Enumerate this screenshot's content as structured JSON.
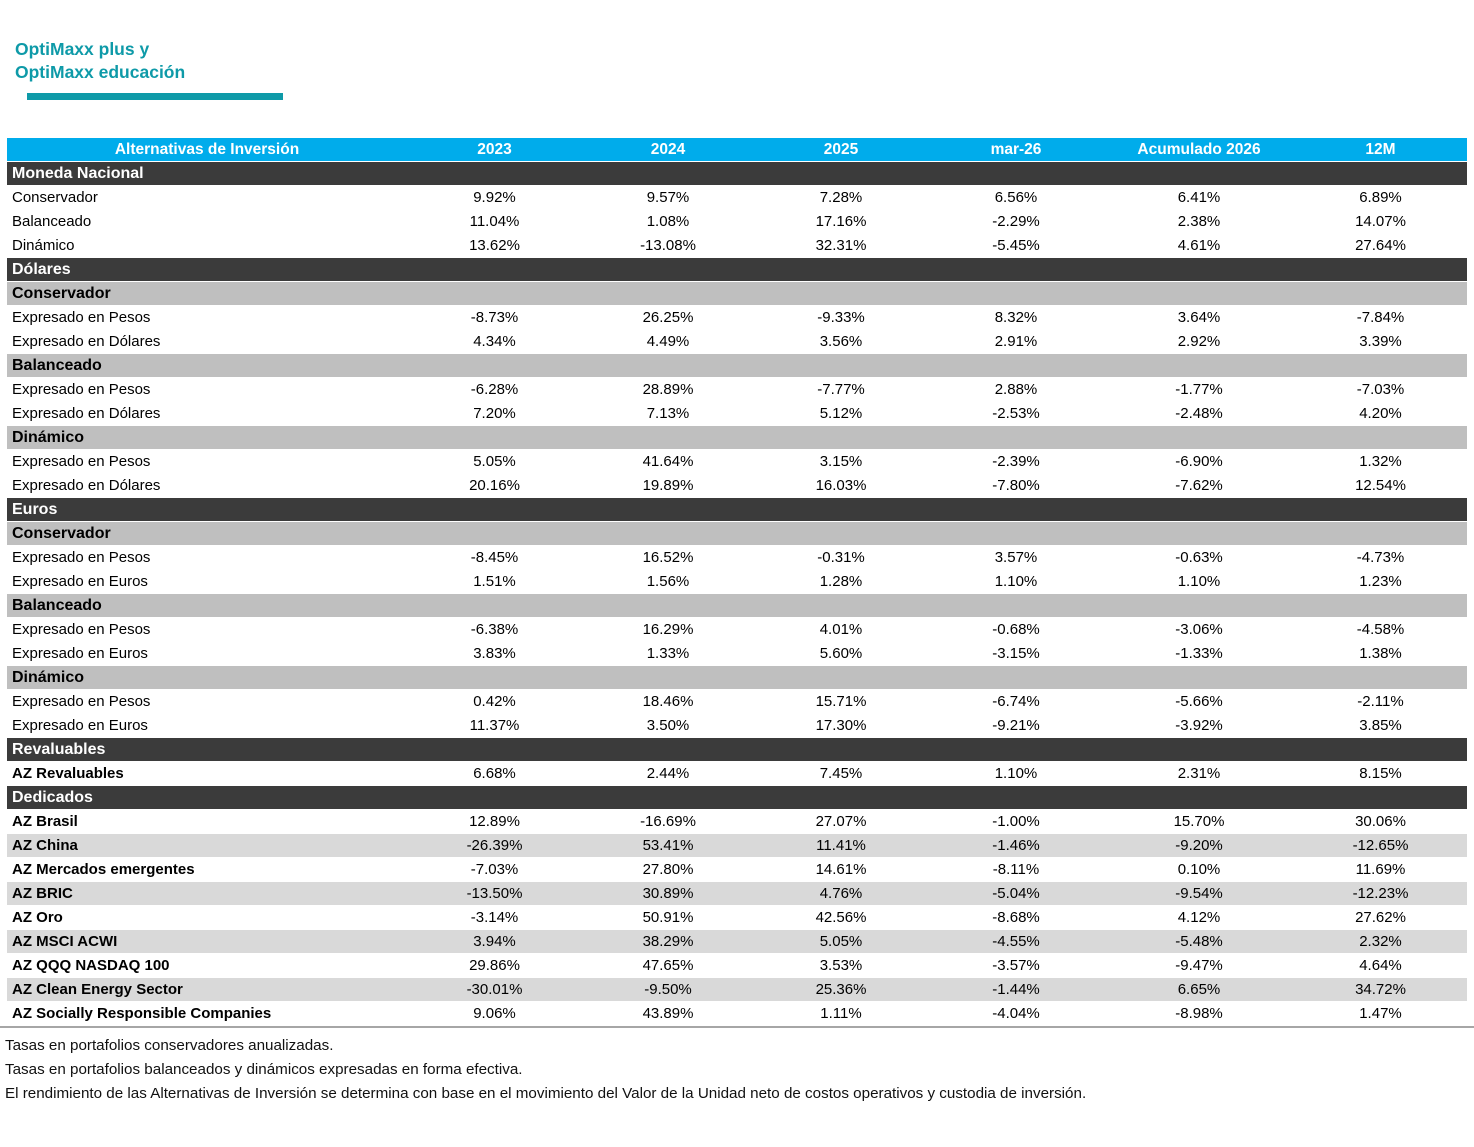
{
  "header": {
    "title_line1": "OptiMaxx plus y",
    "title_line2": "OptiMaxx educación"
  },
  "theme": {
    "teal": "#0e9aa8",
    "table_header_bg": "#00aceb",
    "section_bg": "#3b3b3b",
    "subsection_bg": "#bfbfbf",
    "stripe_bg": "#d9d9d9",
    "divider": "#a6a6a6"
  },
  "table": {
    "columns": [
      "Alternativas de Inversión",
      "2023",
      "2024",
      "2025",
      "mar-26",
      "Acumulado 2026",
      "12M"
    ],
    "rows": [
      {
        "type": "section",
        "label": "Moneda Nacional"
      },
      {
        "type": "data",
        "label": "Conservador",
        "values": [
          "9.92%",
          "9.57%",
          "7.28%",
          "6.56%",
          "6.41%",
          "6.89%"
        ]
      },
      {
        "type": "data",
        "label": "Balanceado",
        "values": [
          "11.04%",
          "1.08%",
          "17.16%",
          "-2.29%",
          "2.38%",
          "14.07%"
        ]
      },
      {
        "type": "data",
        "label": "Dinámico",
        "values": [
          "13.62%",
          "-13.08%",
          "32.31%",
          "-5.45%",
          "4.61%",
          "27.64%"
        ]
      },
      {
        "type": "section",
        "label": "Dólares"
      },
      {
        "type": "subsection",
        "label": "Conservador"
      },
      {
        "type": "data",
        "label": "Expresado en Pesos",
        "values": [
          "-8.73%",
          "26.25%",
          "-9.33%",
          "8.32%",
          "3.64%",
          "-7.84%"
        ]
      },
      {
        "type": "data",
        "label": "Expresado en Dólares",
        "values": [
          "4.34%",
          "4.49%",
          "3.56%",
          "2.91%",
          "2.92%",
          "3.39%"
        ]
      },
      {
        "type": "subsection",
        "label": "Balanceado"
      },
      {
        "type": "data",
        "label": "Expresado en Pesos",
        "values": [
          "-6.28%",
          "28.89%",
          "-7.77%",
          "2.88%",
          "-1.77%",
          "-7.03%"
        ]
      },
      {
        "type": "data",
        "label": "Expresado en Dólares",
        "values": [
          "7.20%",
          "7.13%",
          "5.12%",
          "-2.53%",
          "-2.48%",
          "4.20%"
        ]
      },
      {
        "type": "subsection",
        "label": "Dinámico"
      },
      {
        "type": "data",
        "label": "Expresado en Pesos",
        "values": [
          "5.05%",
          "41.64%",
          "3.15%",
          "-2.39%",
          "-6.90%",
          "1.32%"
        ]
      },
      {
        "type": "data",
        "label": "Expresado en Dólares",
        "values": [
          "20.16%",
          "19.89%",
          "16.03%",
          "-7.80%",
          "-7.62%",
          "12.54%"
        ]
      },
      {
        "type": "section",
        "label": "Euros"
      },
      {
        "type": "subsection",
        "label": "Conservador"
      },
      {
        "type": "data",
        "label": "Expresado en Pesos",
        "values": [
          "-8.45%",
          "16.52%",
          "-0.31%",
          "3.57%",
          "-0.63%",
          "-4.73%"
        ]
      },
      {
        "type": "data",
        "label": "Expresado en Euros",
        "values": [
          "1.51%",
          "1.56%",
          "1.28%",
          "1.10%",
          "1.10%",
          "1.23%"
        ]
      },
      {
        "type": "subsection",
        "label": "Balanceado"
      },
      {
        "type": "data",
        "label": "Expresado en Pesos",
        "values": [
          "-6.38%",
          "16.29%",
          "4.01%",
          "-0.68%",
          "-3.06%",
          "-4.58%"
        ]
      },
      {
        "type": "data",
        "label": "Expresado en Euros",
        "values": [
          "3.83%",
          "1.33%",
          "5.60%",
          "-3.15%",
          "-1.33%",
          "1.38%"
        ]
      },
      {
        "type": "subsection",
        "label": "Dinámico"
      },
      {
        "type": "data",
        "label": "Expresado en Pesos",
        "values": [
          "0.42%",
          "18.46%",
          "15.71%",
          "-6.74%",
          "-5.66%",
          "-2.11%"
        ]
      },
      {
        "type": "data",
        "label": "Expresado en Euros",
        "values": [
          "11.37%",
          "3.50%",
          "17.30%",
          "-9.21%",
          "-3.92%",
          "3.85%"
        ]
      },
      {
        "type": "section",
        "label": "Revaluables"
      },
      {
        "type": "data",
        "bold": true,
        "label": "AZ Revaluables",
        "values": [
          "6.68%",
          "2.44%",
          "7.45%",
          "1.10%",
          "2.31%",
          "8.15%"
        ]
      },
      {
        "type": "section",
        "label": "Dedicados"
      },
      {
        "type": "data",
        "bold": true,
        "label": "AZ Brasil",
        "values": [
          "12.89%",
          "-16.69%",
          "27.07%",
          "-1.00%",
          "15.70%",
          "30.06%"
        ]
      },
      {
        "type": "data",
        "bold": true,
        "striped": true,
        "label": "AZ China",
        "values": [
          "-26.39%",
          "53.41%",
          "11.41%",
          "-1.46%",
          "-9.20%",
          "-12.65%"
        ]
      },
      {
        "type": "data",
        "bold": true,
        "label": "AZ Mercados emergentes",
        "values": [
          "-7.03%",
          "27.80%",
          "14.61%",
          "-8.11%",
          "0.10%",
          "11.69%"
        ]
      },
      {
        "type": "data",
        "bold": true,
        "striped": true,
        "label": "AZ BRIC",
        "values": [
          "-13.50%",
          "30.89%",
          "4.76%",
          "-5.04%",
          "-9.54%",
          "-12.23%"
        ]
      },
      {
        "type": "data",
        "bold": true,
        "label": "AZ Oro",
        "values": [
          "-3.14%",
          "50.91%",
          "42.56%",
          "-8.68%",
          "4.12%",
          "27.62%"
        ]
      },
      {
        "type": "data",
        "bold": true,
        "striped": true,
        "label": "AZ MSCI ACWI",
        "values": [
          "3.94%",
          "38.29%",
          "5.05%",
          "-4.55%",
          "-5.48%",
          "2.32%"
        ]
      },
      {
        "type": "data",
        "bold": true,
        "label": "AZ QQQ NASDAQ 100",
        "values": [
          "29.86%",
          "47.65%",
          "3.53%",
          "-3.57%",
          "-9.47%",
          "4.64%"
        ]
      },
      {
        "type": "data",
        "bold": true,
        "striped": true,
        "label": "AZ Clean Energy Sector",
        "values": [
          "-30.01%",
          "-9.50%",
          "25.36%",
          "-1.44%",
          "6.65%",
          "34.72%"
        ]
      },
      {
        "type": "data",
        "bold": true,
        "label": "AZ Socially Responsible Companies",
        "values": [
          "9.06%",
          "43.89%",
          "1.11%",
          "-4.04%",
          "-8.98%",
          "1.47%"
        ]
      }
    ]
  },
  "footnotes": [
    "Tasas en portafolios conservadores anualizadas.",
    "Tasas en portafolios balanceados y dinámicos expresadas en forma efectiva.",
    "El rendimiento de las Alternativas de Inversión se determina con base en el movimiento del Valor de la Unidad neto de costos operativos y custodia de inversión."
  ]
}
